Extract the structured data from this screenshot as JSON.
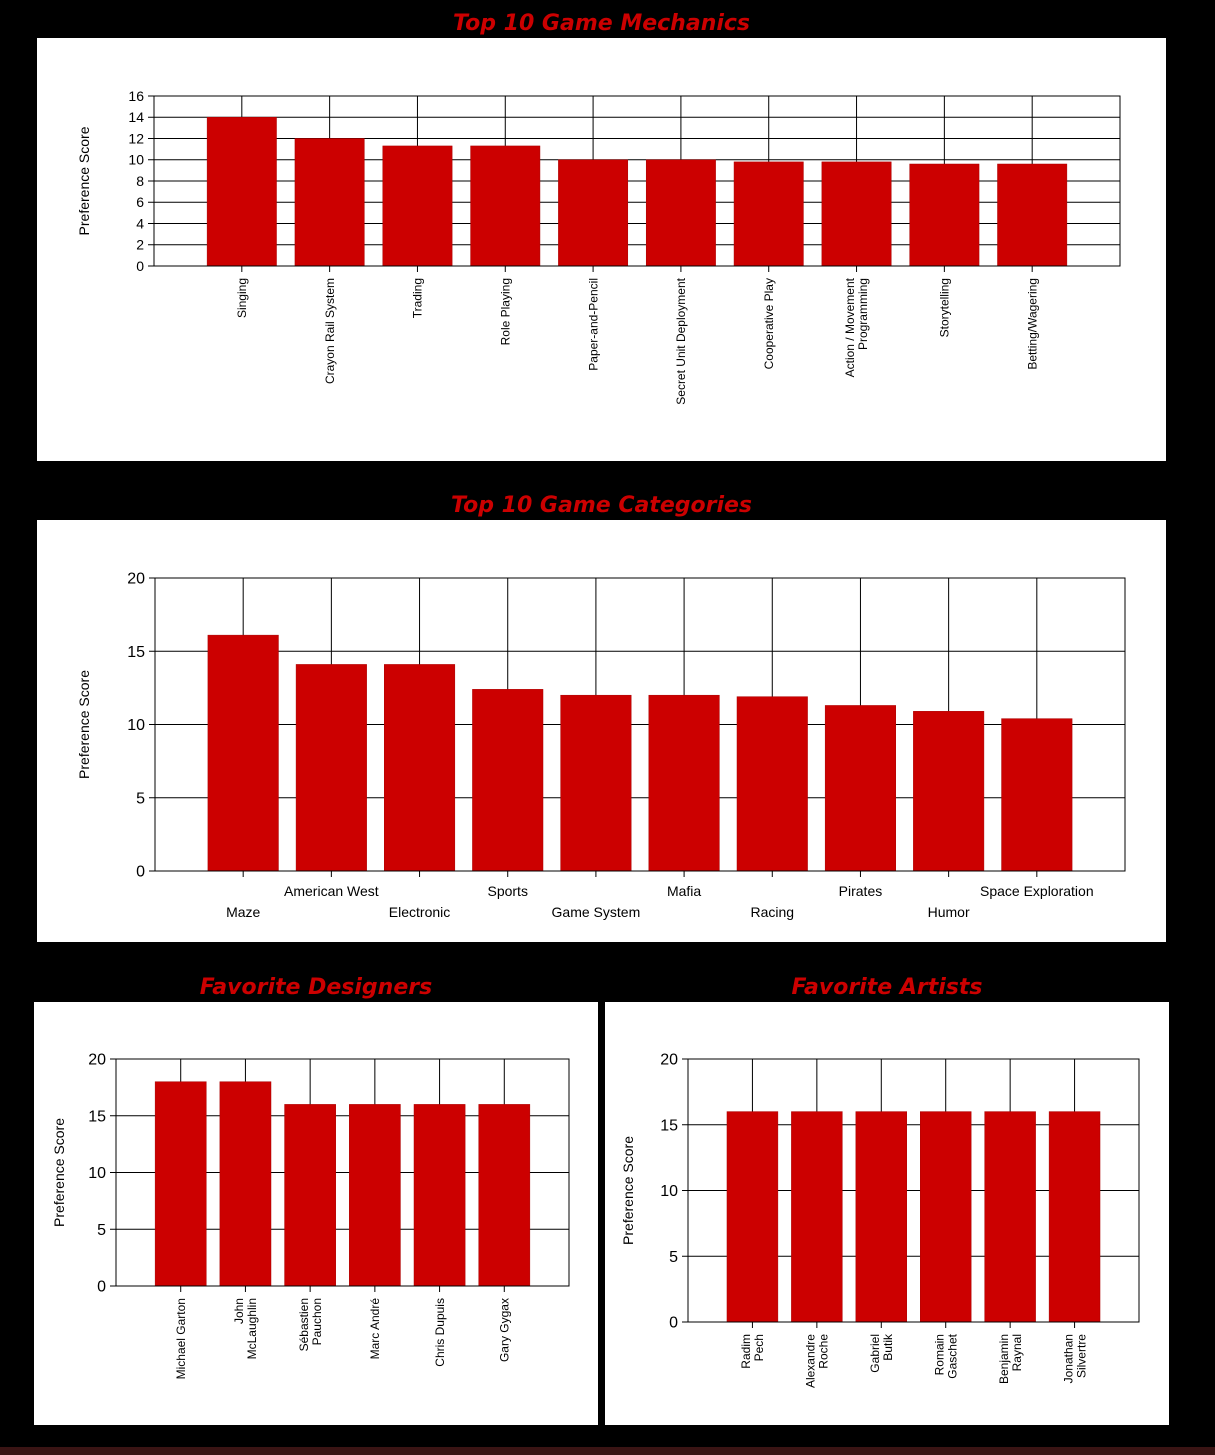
{
  "colors": {
    "background": "#000000",
    "panel": "#ffffff",
    "title": "#cc0000",
    "bar": "#cc0000",
    "grid": "#000000"
  },
  "chart_data": [
    {
      "id": "mechanics",
      "type": "bar",
      "title": "Top 10 Game Mechanics",
      "ylabel": "Preference Score",
      "ylim": [
        0,
        16
      ],
      "yticks": [
        0,
        2,
        4,
        6,
        8,
        10,
        12,
        14,
        16
      ],
      "label_orientation": "rotated",
      "categories": [
        "Singing",
        "Crayon Rail System",
        "Trading",
        "Role Playing",
        "Paper-and-Pencil",
        "Secret Unit Deployment",
        "Cooperative Play",
        "Action / Movement Programming",
        "Storytelling",
        "Betting/Wagering"
      ],
      "category_lines": [
        [
          "Singing"
        ],
        [
          "Crayon Rail System"
        ],
        [
          "Trading"
        ],
        [
          "Role Playing"
        ],
        [
          "Paper-and-Pencil"
        ],
        [
          "Secret Unit Deployment"
        ],
        [
          "Cooperative Play"
        ],
        [
          "Action / Movement",
          "Programming"
        ],
        [
          "Storytelling"
        ],
        [
          "Betting/Wagering"
        ]
      ],
      "values": [
        14,
        12,
        11.3,
        11.3,
        10,
        10,
        9.8,
        9.8,
        9.6,
        9.6
      ],
      "grid": true,
      "legend": "none"
    },
    {
      "id": "categories",
      "type": "bar",
      "title": "Top 10 Game Categories",
      "ylabel": "Preference Score",
      "ylim": [
        0,
        20
      ],
      "yticks": [
        0,
        5,
        10,
        15,
        20
      ],
      "label_orientation": "staggered",
      "categories": [
        "Maze",
        "American West",
        "Electronic",
        "Sports",
        "Game System",
        "Mafia",
        "Racing",
        "Pirates",
        "Humor",
        "Space Exploration"
      ],
      "category_lines": [
        [
          "Maze"
        ],
        [
          "American West"
        ],
        [
          "Electronic"
        ],
        [
          "Sports"
        ],
        [
          "Game System"
        ],
        [
          "Mafia"
        ],
        [
          "Racing"
        ],
        [
          "Pirates"
        ],
        [
          "Humor"
        ],
        [
          "Space Exploration"
        ]
      ],
      "values": [
        16.1,
        14.1,
        14.1,
        12.4,
        12,
        12,
        11.9,
        11.3,
        10.9,
        10.4
      ],
      "grid": true,
      "legend": "none"
    },
    {
      "id": "designers",
      "type": "bar",
      "title": "Favorite Designers",
      "ylabel": "Preference Score",
      "ylim": [
        0,
        20
      ],
      "yticks": [
        0,
        5,
        10,
        15,
        20
      ],
      "label_orientation": "rotated",
      "categories": [
        "Michael Garton",
        "John McLaughlin",
        "Sébastien Pauchon",
        "Marc André",
        "Chris Dupuis",
        "Gary Gygax"
      ],
      "category_lines": [
        [
          "Michael Garton"
        ],
        [
          "John",
          "McLaughlin"
        ],
        [
          "Sébastien",
          "Pauchon"
        ],
        [
          "Marc André"
        ],
        [
          "Chris Dupuis"
        ],
        [
          "Gary Gygax"
        ]
      ],
      "values": [
        18,
        18,
        16,
        16,
        16,
        16
      ],
      "grid": true,
      "legend": "none"
    },
    {
      "id": "artists",
      "type": "bar",
      "title": "Favorite Artists",
      "ylabel": "Preference Score",
      "ylim": [
        0,
        20
      ],
      "yticks": [
        0,
        5,
        10,
        15,
        20
      ],
      "label_orientation": "rotated",
      "categories": [
        "Radim Pech",
        "Alexandre Roche",
        "Gabriel Butik",
        "Romain Gaschet",
        "Benjamin Raynal",
        "Jonathan Silvertre"
      ],
      "category_lines": [
        [
          "Radim",
          "Pech"
        ],
        [
          "Alexandre",
          "Roche"
        ],
        [
          "Gabriel",
          "Butik"
        ],
        [
          "Romain",
          "Gaschet"
        ],
        [
          "Benjamin",
          "Raynal"
        ],
        [
          "Jonathan",
          "Silvertre"
        ]
      ],
      "values": [
        16,
        16,
        16,
        16,
        16,
        16
      ],
      "grid": true,
      "legend": "none"
    }
  ]
}
